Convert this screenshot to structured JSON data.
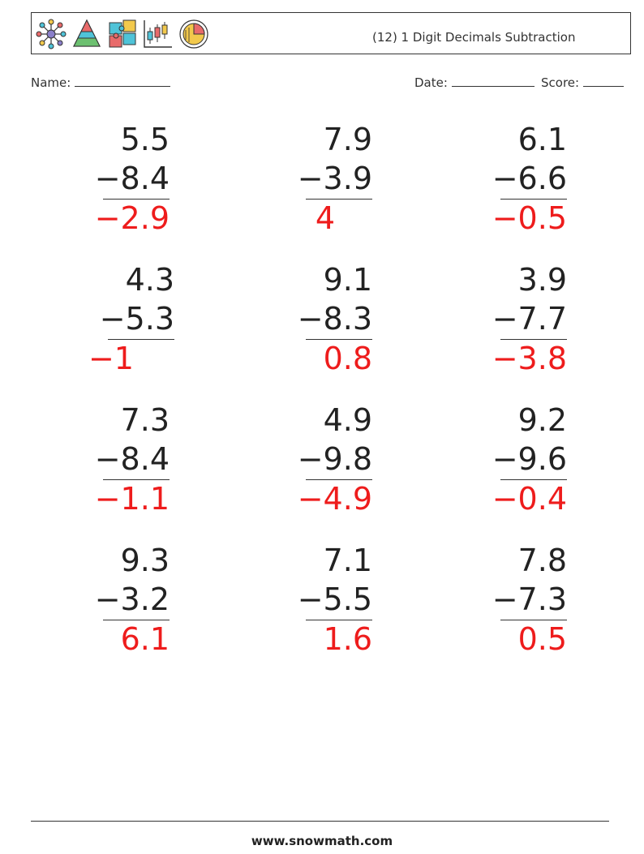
{
  "header": {
    "title": "(12) 1 Digit Decimals Subtraction",
    "icons": [
      "network-icon",
      "pyramid-icon",
      "puzzle-icon",
      "candlestick-chart-icon",
      "pie-chart-icon"
    ]
  },
  "fields": {
    "name_label": "Name:",
    "date_label": "Date:",
    "score_label": "Score:"
  },
  "colors": {
    "answer": "#ee1c1c",
    "text": "#222222"
  },
  "problems": [
    {
      "top": "5.5",
      "sub": "−8.4",
      "answer": "−2.9"
    },
    {
      "top": "7.9",
      "sub": "−3.9",
      "answer": "4"
    },
    {
      "top": "6.1",
      "sub": "−6.6",
      "answer": "−0.5"
    },
    {
      "top": "4.3",
      "sub": "−5.3",
      "answer": "−1"
    },
    {
      "top": "9.1",
      "sub": "−8.3",
      "answer": "0.8"
    },
    {
      "top": "3.9",
      "sub": "−7.7",
      "answer": "−3.8"
    },
    {
      "top": "7.3",
      "sub": "−8.4",
      "answer": "−1.1"
    },
    {
      "top": "4.9",
      "sub": "−9.8",
      "answer": "−4.9"
    },
    {
      "top": "9.2",
      "sub": "−9.6",
      "answer": "−0.4"
    },
    {
      "top": "9.3",
      "sub": "−3.2",
      "answer": "6.1"
    },
    {
      "top": "7.1",
      "sub": "−5.5",
      "answer": "1.6"
    },
    {
      "top": "7.8",
      "sub": "−7.3",
      "answer": "0.5"
    }
  ],
  "footer": {
    "site": "www.snowmath.com"
  }
}
